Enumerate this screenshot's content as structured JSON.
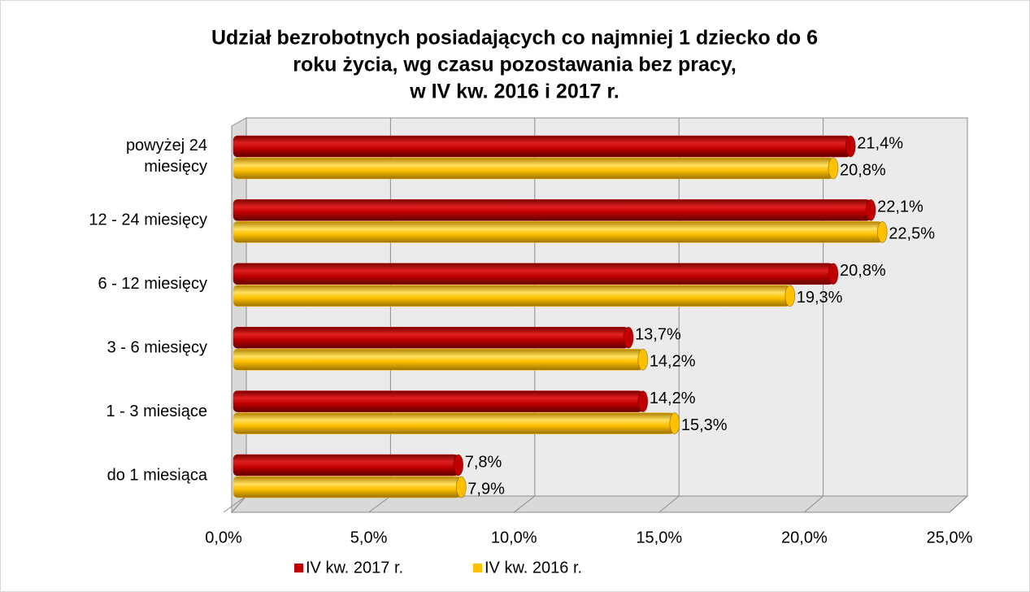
{
  "chart_data": {
    "type": "bar",
    "orientation": "horizontal",
    "title": [
      "Udział bezrobotnych posiadających co najmniej 1 dziecko do 6",
      "roku życia, wg czasu pozostawania bez pracy,",
      "w IV kw. 2016 i  2017 r."
    ],
    "categories": [
      "powyżej 24 miesięcy",
      "12 - 24 miesięcy",
      "6 - 12 miesięcy",
      "3 - 6 miesięcy",
      "1 - 3 miesiące",
      "do 1 miesiąca"
    ],
    "series": [
      {
        "name": "IV kw. 2017 r.",
        "color": "#c00000",
        "values": [
          21.4,
          22.1,
          20.8,
          13.7,
          14.2,
          7.8
        ],
        "value_labels": [
          "21,4%",
          "22,1%",
          "20,8%",
          "13,7%",
          "14,2%",
          "7,8%"
        ]
      },
      {
        "name": "IV kw. 2016 r.",
        "color": "#ffc000",
        "values": [
          20.8,
          22.5,
          19.3,
          14.2,
          15.3,
          7.9
        ],
        "value_labels": [
          "20,8%",
          "22,5%",
          "19,3%",
          "14,2%",
          "15,3%",
          "7,9%"
        ]
      }
    ],
    "xlim": [
      0,
      25
    ],
    "xticks": [
      {
        "value": 0,
        "label": "0,0%"
      },
      {
        "value": 5,
        "label": "5,0%"
      },
      {
        "value": 10,
        "label": "10,0%"
      },
      {
        "value": 15,
        "label": "15,0%"
      },
      {
        "value": 20,
        "label": "20,0%"
      },
      {
        "value": 25,
        "label": "25,0%"
      }
    ],
    "grid": true,
    "legend": "bottom"
  }
}
